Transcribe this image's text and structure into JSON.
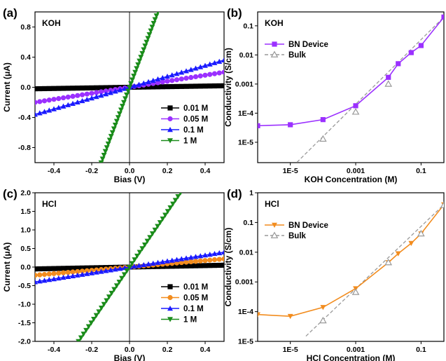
{
  "chart_data": [
    {
      "id": "a",
      "type": "line",
      "panel_label": "(a)",
      "title": "KOH",
      "xlabel": "Bias (V)",
      "ylabel": "Current (μA)",
      "xlim": [
        -0.5,
        0.5
      ],
      "ylim": [
        -1.0,
        1.0
      ],
      "xticks": [
        -0.4,
        -0.2,
        0.0,
        0.2,
        0.4
      ],
      "xtick_labels": [
        "-0.4",
        "-0.2",
        "0.0",
        "0.2",
        "0.4"
      ],
      "yticks": [
        -0.8,
        -0.4,
        0.0,
        0.4,
        0.8
      ],
      "ytick_labels": [
        "-0.8",
        "-0.4",
        "0.0",
        "0.4",
        "0.8"
      ],
      "legend_position": "bottom-right",
      "series": [
        {
          "name": "0.01 M",
          "color": "#000000",
          "marker": "square",
          "x": [
            -0.5,
            0.5
          ],
          "y": [
            -0.02,
            0.02
          ]
        },
        {
          "name": "0.05 M",
          "color": "#9b30ff",
          "marker": "circle",
          "x": [
            -0.5,
            0.5
          ],
          "y": [
            -0.2,
            0.2
          ]
        },
        {
          "name": "0.1 M",
          "color": "#1a1aff",
          "marker": "triangle-up",
          "x": [
            -0.5,
            0.5
          ],
          "y": [
            -0.36,
            0.36
          ]
        },
        {
          "name": "1 M",
          "color": "#1a8c1a",
          "marker": "triangle-down",
          "x": [
            -0.15,
            0.15
          ],
          "y": [
            -1.0,
            1.0
          ]
        }
      ]
    },
    {
      "id": "b",
      "type": "scatter",
      "panel_label": "(b)",
      "title": "KOH",
      "xlabel": "KOH Concentration (M)",
      "ylabel": "Conductivity (S/cm)",
      "xscale": "log",
      "yscale": "log",
      "xlim": [
        1e-06,
        0.5
      ],
      "ylim": [
        2e-06,
        0.3
      ],
      "xticks": [
        1e-05,
        0.001,
        0.1
      ],
      "xtick_labels": [
        "1E-5",
        "0.001",
        "0.1"
      ],
      "yticks": [
        1e-05,
        0.0001,
        0.001,
        0.01,
        0.1
      ],
      "ytick_labels": [
        "1E-5",
        "1E-4",
        "0.001",
        "0.01",
        "0.1"
      ],
      "legend_position": "top-left",
      "series": [
        {
          "name": "BN Device",
          "color": "#9b30ff",
          "marker": "square",
          "line": "solid",
          "x": [
            1e-06,
            1e-05,
            0.0001,
            0.001,
            0.01,
            0.02,
            0.05,
            0.1,
            0.5
          ],
          "y": [
            3.7e-05,
            4e-05,
            6e-05,
            0.00018,
            0.0017,
            0.005,
            0.012,
            0.021,
            0.2
          ]
        },
        {
          "name": "Bulk",
          "color": "#999999",
          "marker": "triangle-up-open",
          "line": "dashed",
          "x": [
            0.0001,
            0.001,
            0.01
          ],
          "y": [
            1.3e-05,
            0.00011,
            0.001
          ]
        }
      ],
      "reference_line": {
        "x": [
          1.2e-05,
          0.5
        ],
        "y": [
          1.5e-06,
          0.2
        ]
      }
    },
    {
      "id": "c",
      "type": "line",
      "panel_label": "(c)",
      "title": "HCl",
      "xlabel": "Bias (V)",
      "ylabel": "Current (μA)",
      "xlim": [
        -0.5,
        0.5
      ],
      "ylim": [
        -2.0,
        2.0
      ],
      "xticks": [
        -0.4,
        -0.2,
        0.0,
        0.2,
        0.4
      ],
      "xtick_labels": [
        "-0.4",
        "-0.2",
        "0.0",
        "0.2",
        "0.4"
      ],
      "yticks": [
        -2.0,
        -1.5,
        -1.0,
        -0.5,
        0.0,
        0.5,
        1.0,
        1.5,
        2.0
      ],
      "ytick_labels": [
        "-2.0",
        "-1.5",
        "-1.0",
        "-0.5",
        "0.0",
        "0.5",
        "1.0",
        "1.5",
        "2.0"
      ],
      "legend_position": "bottom-right",
      "series": [
        {
          "name": "0.01 M",
          "color": "#000000",
          "marker": "square",
          "x": [
            -0.5,
            0.5
          ],
          "y": [
            -0.05,
            0.05
          ]
        },
        {
          "name": "0.05 M",
          "color": "#f28c1e",
          "marker": "circle",
          "x": [
            -0.5,
            0.5
          ],
          "y": [
            -0.22,
            0.22
          ]
        },
        {
          "name": "0.1 M",
          "color": "#1a1aff",
          "marker": "triangle-up",
          "x": [
            -0.5,
            0.5
          ],
          "y": [
            -0.4,
            0.4
          ]
        },
        {
          "name": "1 M",
          "color": "#1a8c1a",
          "marker": "triangle-down",
          "x": [
            -0.27,
            0.27
          ],
          "y": [
            -2.0,
            2.0
          ]
        }
      ]
    },
    {
      "id": "d",
      "type": "scatter",
      "panel_label": "(d)",
      "title": "HCl",
      "xlabel": "HCl Concentration (M)",
      "ylabel": "Conductivity (S/cm)",
      "xscale": "log",
      "yscale": "log",
      "xlim": [
        1e-06,
        0.5
      ],
      "ylim": [
        1e-05,
        1
      ],
      "xticks": [
        1e-05,
        0.001,
        0.1
      ],
      "xtick_labels": [
        "1E-5",
        "0.001",
        "0.1"
      ],
      "yticks": [
        1e-05,
        0.0001,
        0.001,
        0.01,
        0.1,
        1
      ],
      "ytick_labels": [
        "1E-5",
        "1E-4",
        "0.001",
        "0.01",
        "0.1",
        "1"
      ],
      "legend_position": "top-left",
      "series": [
        {
          "name": "BN Device",
          "color": "#f28c1e",
          "marker": "triangle-down",
          "line": "solid",
          "x": [
            1e-06,
            1e-05,
            0.0001,
            0.001,
            0.01,
            0.02,
            0.05,
            0.1,
            0.5
          ],
          "y": [
            8e-05,
            7e-05,
            0.00014,
            0.0006,
            0.0045,
            0.009,
            0.02,
            0.042,
            0.4
          ]
        },
        {
          "name": "Bulk",
          "color": "#999999",
          "marker": "triangle-up-open",
          "line": "dashed",
          "x": [
            0.0001,
            0.001,
            0.01,
            0.1,
            0.5
          ],
          "y": [
            5e-05,
            0.00045,
            0.0045,
            0.042,
            0.38
          ]
        }
      ],
      "reference_line": {
        "x": [
          3e-05,
          0.5
        ],
        "y": [
          1.5e-05,
          0.4
        ]
      }
    }
  ]
}
